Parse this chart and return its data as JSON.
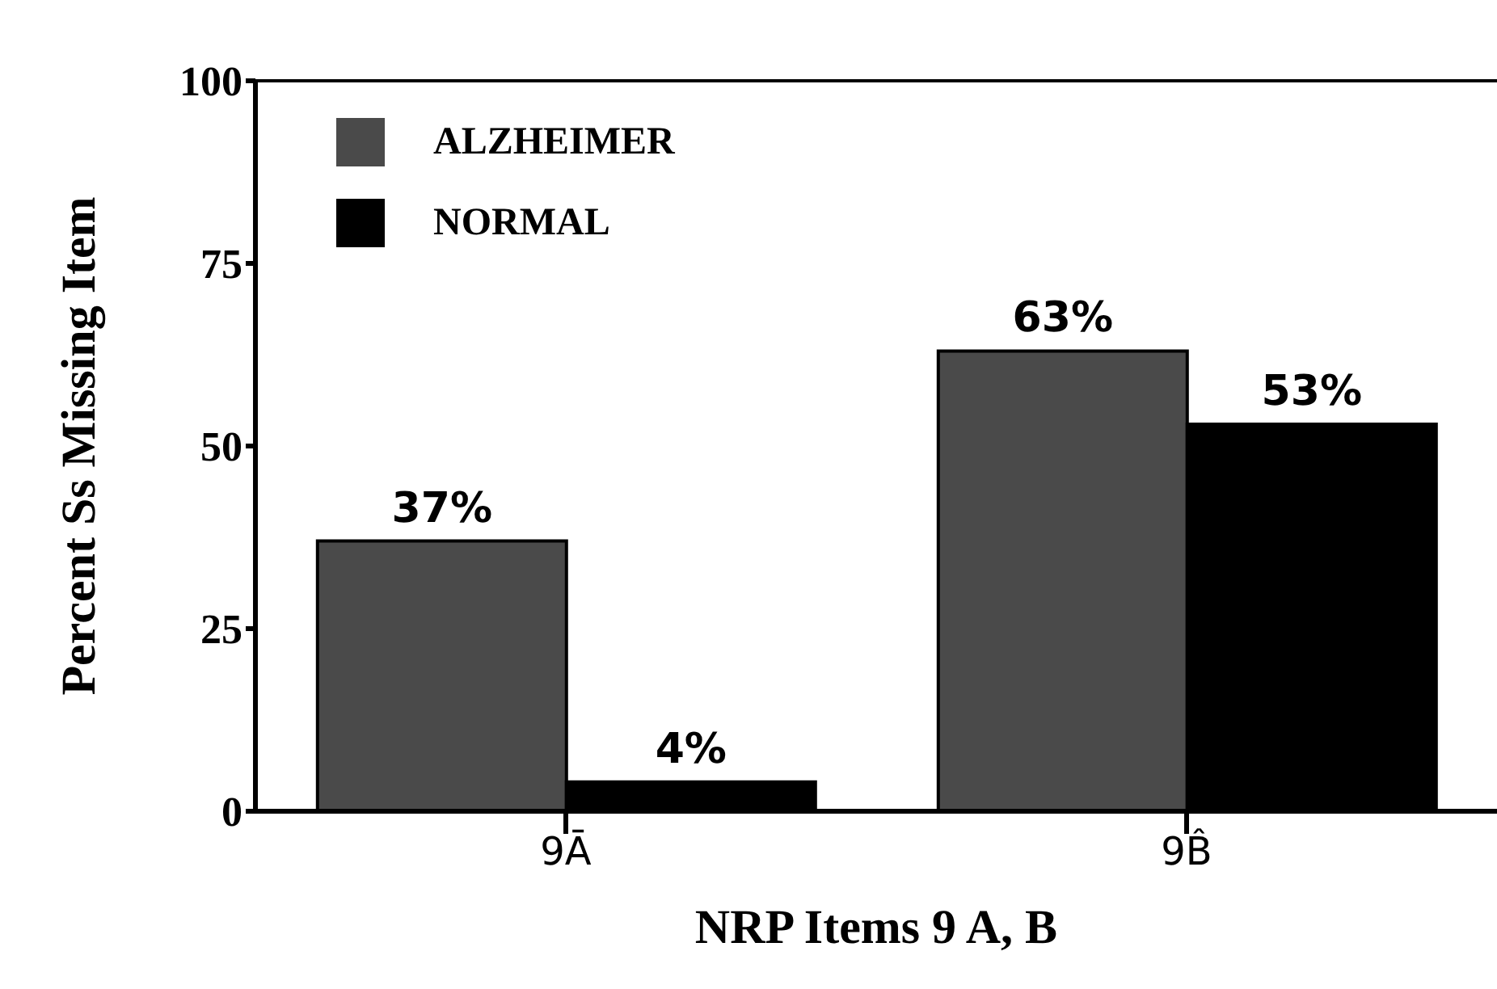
{
  "chart_data": {
    "type": "bar",
    "xlabel": "NRP Items 9 A, B",
    "ylabel": "Percent Ss Missing Item",
    "categories": [
      "9Ā",
      "9B̂"
    ],
    "series": [
      {
        "name": "ALZHEIMER",
        "color": "#4a4a4a",
        "values": [
          37,
          63
        ],
        "value_labels": [
          "37%",
          "63%"
        ]
      },
      {
        "name": "NORMAL",
        "color": "#000000",
        "values": [
          4,
          53
        ],
        "value_labels": [
          "4%",
          "53%"
        ]
      }
    ],
    "ylim": [
      0,
      100
    ],
    "yticks": [
      0,
      25,
      50,
      75,
      100
    ],
    "grid": false,
    "legend": "top left"
  }
}
